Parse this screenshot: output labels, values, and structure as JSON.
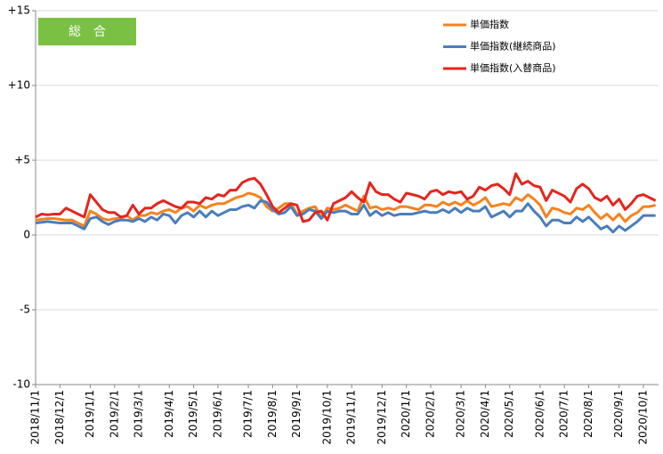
{
  "chart_data": {
    "type": "line",
    "title": "総　合",
    "categories": [
      "2018/11/1",
      null,
      null,
      null,
      "2018/12/1",
      null,
      null,
      null,
      null,
      "2019/1/1",
      null,
      null,
      null,
      "2019/2/1",
      null,
      null,
      null,
      "2019/3/1",
      null,
      null,
      null,
      null,
      "2019/4/1",
      null,
      null,
      null,
      "2019/5/1",
      null,
      null,
      null,
      "2019/6/1",
      null,
      null,
      null,
      null,
      "2019/7/1",
      null,
      null,
      null,
      "2019/8/1",
      null,
      null,
      null,
      "2019/9/1",
      null,
      null,
      null,
      null,
      "2019/10/1",
      null,
      null,
      null,
      "2019/11/1",
      null,
      null,
      null,
      null,
      "2019/12/1",
      null,
      null,
      null,
      "2020/1/1",
      null,
      null,
      null,
      "2020/2/1",
      null,
      null,
      null,
      null,
      "2020/3/1",
      null,
      null,
      null,
      "2020/4/1",
      null,
      null,
      null,
      "2020/5/1",
      null,
      null,
      null,
      null,
      "2020/6/1",
      null,
      null,
      null,
      "2020/7/1",
      null,
      null,
      null,
      "2020/8/1",
      null,
      null,
      null,
      null,
      "2020/9/1",
      null,
      null,
      null,
      "2020/10/1",
      null,
      null
    ],
    "series": [
      {
        "name": "単価指数",
        "color": "#f5821f",
        "values": [
          1.0,
          1.05,
          1.1,
          1.1,
          1.05,
          1.0,
          1.0,
          0.8,
          0.6,
          1.6,
          1.4,
          1.1,
          1.0,
          1.1,
          1.1,
          1.3,
          1.0,
          1.3,
          1.3,
          1.5,
          1.4,
          1.6,
          1.7,
          1.5,
          1.8,
          1.9,
          1.6,
          2.0,
          1.8,
          2.0,
          2.1,
          2.1,
          2.3,
          2.5,
          2.6,
          2.8,
          2.7,
          2.5,
          1.9,
          1.6,
          1.8,
          2.1,
          2.1,
          1.4,
          1.6,
          1.8,
          1.9,
          1.2,
          1.8,
          1.7,
          1.8,
          2.0,
          1.8,
          1.6,
          2.6,
          1.8,
          1.9,
          1.7,
          1.8,
          1.7,
          1.9,
          1.9,
          1.8,
          1.7,
          2.0,
          2.0,
          1.9,
          2.2,
          2.0,
          2.2,
          2.0,
          2.3,
          2.0,
          2.2,
          2.5,
          1.9,
          2.0,
          2.1,
          2.0,
          2.5,
          2.3,
          2.7,
          2.4,
          2.0,
          1.2,
          1.8,
          1.7,
          1.5,
          1.4,
          1.8,
          1.7,
          2.0,
          1.5,
          1.1,
          1.4,
          1.0,
          1.4,
          0.9,
          1.3,
          1.5,
          1.9,
          1.9,
          2.0
        ]
      },
      {
        "name": "単価指数(継続商品)",
        "color": "#4a7ebb",
        "values": [
          0.8,
          0.85,
          0.9,
          0.85,
          0.8,
          0.8,
          0.8,
          0.6,
          0.4,
          1.1,
          1.2,
          0.9,
          0.7,
          0.9,
          1.0,
          1.0,
          0.9,
          1.1,
          0.9,
          1.2,
          1.0,
          1.4,
          1.3,
          0.8,
          1.3,
          1.5,
          1.2,
          1.6,
          1.2,
          1.6,
          1.3,
          1.5,
          1.7,
          1.7,
          1.9,
          2.0,
          1.8,
          2.3,
          2.2,
          1.7,
          1.4,
          1.5,
          1.9,
          1.3,
          1.4,
          1.7,
          1.6,
          1.1,
          1.6,
          1.5,
          1.6,
          1.6,
          1.4,
          1.4,
          2.0,
          1.3,
          1.6,
          1.3,
          1.5,
          1.3,
          1.4,
          1.4,
          1.4,
          1.5,
          1.6,
          1.5,
          1.5,
          1.7,
          1.5,
          1.8,
          1.5,
          1.8,
          1.6,
          1.6,
          1.9,
          1.2,
          1.4,
          1.6,
          1.2,
          1.6,
          1.6,
          2.1,
          1.6,
          1.2,
          0.6,
          1.0,
          1.0,
          0.8,
          0.8,
          1.2,
          0.9,
          1.2,
          0.8,
          0.4,
          0.6,
          0.2,
          0.6,
          0.3,
          0.6,
          0.9,
          1.3,
          1.3,
          1.3
        ]
      },
      {
        "name": "単価指数(入替商品)",
        "color": "#e3261f",
        "values": [
          1.2,
          1.4,
          1.35,
          1.4,
          1.4,
          1.8,
          1.6,
          1.4,
          1.2,
          2.7,
          2.2,
          1.7,
          1.5,
          1.5,
          1.2,
          1.3,
          2.0,
          1.4,
          1.8,
          1.8,
          2.1,
          2.3,
          2.1,
          1.9,
          1.8,
          2.2,
          2.2,
          2.1,
          2.5,
          2.4,
          2.7,
          2.6,
          3.0,
          3.0,
          3.5,
          3.7,
          3.8,
          3.4,
          2.7,
          1.9,
          1.5,
          1.8,
          2.1,
          2.0,
          0.9,
          1.0,
          1.5,
          1.6,
          1.0,
          2.1,
          2.3,
          2.5,
          2.9,
          2.5,
          2.2,
          3.5,
          2.9,
          2.7,
          2.7,
          2.4,
          2.2,
          2.8,
          2.7,
          2.6,
          2.4,
          2.9,
          3.0,
          2.7,
          2.9,
          2.8,
          2.9,
          2.4,
          2.6,
          3.2,
          3.0,
          3.3,
          3.4,
          3.1,
          2.7,
          4.1,
          3.4,
          3.6,
          3.3,
          3.2,
          2.3,
          3.0,
          2.8,
          2.6,
          2.2,
          3.1,
          3.4,
          3.1,
          2.5,
          2.3,
          2.6,
          2.0,
          2.4,
          1.7,
          2.1,
          2.6,
          2.7,
          2.5,
          2.3
        ]
      }
    ],
    "ylim": [
      -10,
      15
    ],
    "yticks": [
      -10,
      -5,
      0,
      {
        "value": 5,
        "label": "+5"
      },
      {
        "value": 10,
        "label": "+10"
      },
      {
        "value": 15,
        "label": "+15"
      }
    ],
    "grid": true,
    "legend": "top-right",
    "title_color": "#7ac143"
  }
}
